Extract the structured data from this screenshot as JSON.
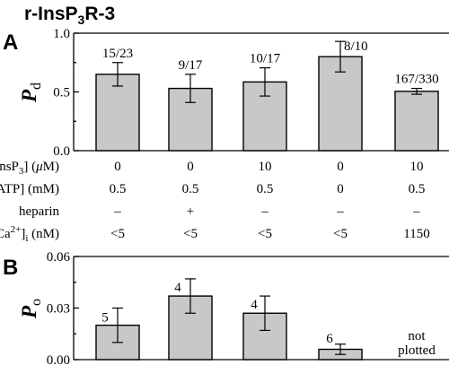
{
  "title": {
    "main": "r-InsP",
    "sub": "3",
    "tail": "R-3"
  },
  "panels": {
    "a": "A",
    "b": "B"
  },
  "conditions": {
    "labels": [
      {
        "pre": "[InsP",
        "sub": "3",
        "mid": "] (",
        "greek": "μ",
        "post": "M)"
      },
      {
        "pre": "[ATP] (mM)",
        "sub": "",
        "mid": "",
        "greek": "",
        "post": ""
      },
      {
        "pre": "heparin",
        "sub": "",
        "mid": "",
        "greek": "",
        "post": ""
      },
      {
        "pre": "[Ca",
        "sup": "2+",
        "mid": "]",
        "sub": "i",
        "post": " (nM)"
      }
    ],
    "rows": [
      [
        "0",
        "0",
        "10",
        "0",
        "10"
      ],
      [
        "0.5",
        "0.5",
        "0.5",
        "0",
        "0.5"
      ],
      [
        "–",
        "+",
        "–",
        "–",
        "–"
      ],
      [
        "<5",
        "<5",
        "<5",
        "<5",
        "1150"
      ]
    ]
  },
  "chart_data": [
    {
      "type": "bar",
      "panel": "A",
      "ylabel": {
        "main": "P",
        "sub": "d"
      },
      "ylim": [
        0,
        1.0
      ],
      "yticks": [
        "0.0",
        "0.5",
        "1.0"
      ],
      "ytick_values": [
        0,
        0.5,
        1.0
      ],
      "values": [
        0.65,
        0.53,
        0.585,
        0.8,
        0.505
      ],
      "errors": [
        0.1,
        0.12,
        0.12,
        0.13,
        0.025
      ],
      "labels": [
        "15/23",
        "9/17",
        "10/17",
        "8/10",
        "167/330"
      ]
    },
    {
      "type": "bar",
      "panel": "B",
      "ylabel": {
        "main": "P",
        "sub": "o"
      },
      "ylim": [
        0,
        0.06
      ],
      "yticks": [
        "0.00",
        "0.03",
        "0.06"
      ],
      "ytick_values": [
        0,
        0.03,
        0.06
      ],
      "values": [
        0.02,
        0.037,
        0.027,
        0.006,
        null
      ],
      "errors": [
        0.01,
        0.01,
        0.01,
        0.003,
        null
      ],
      "labels": [
        "5",
        "4",
        "4",
        "6",
        ""
      ],
      "not_plotted": [
        "not",
        "plotted"
      ]
    }
  ]
}
